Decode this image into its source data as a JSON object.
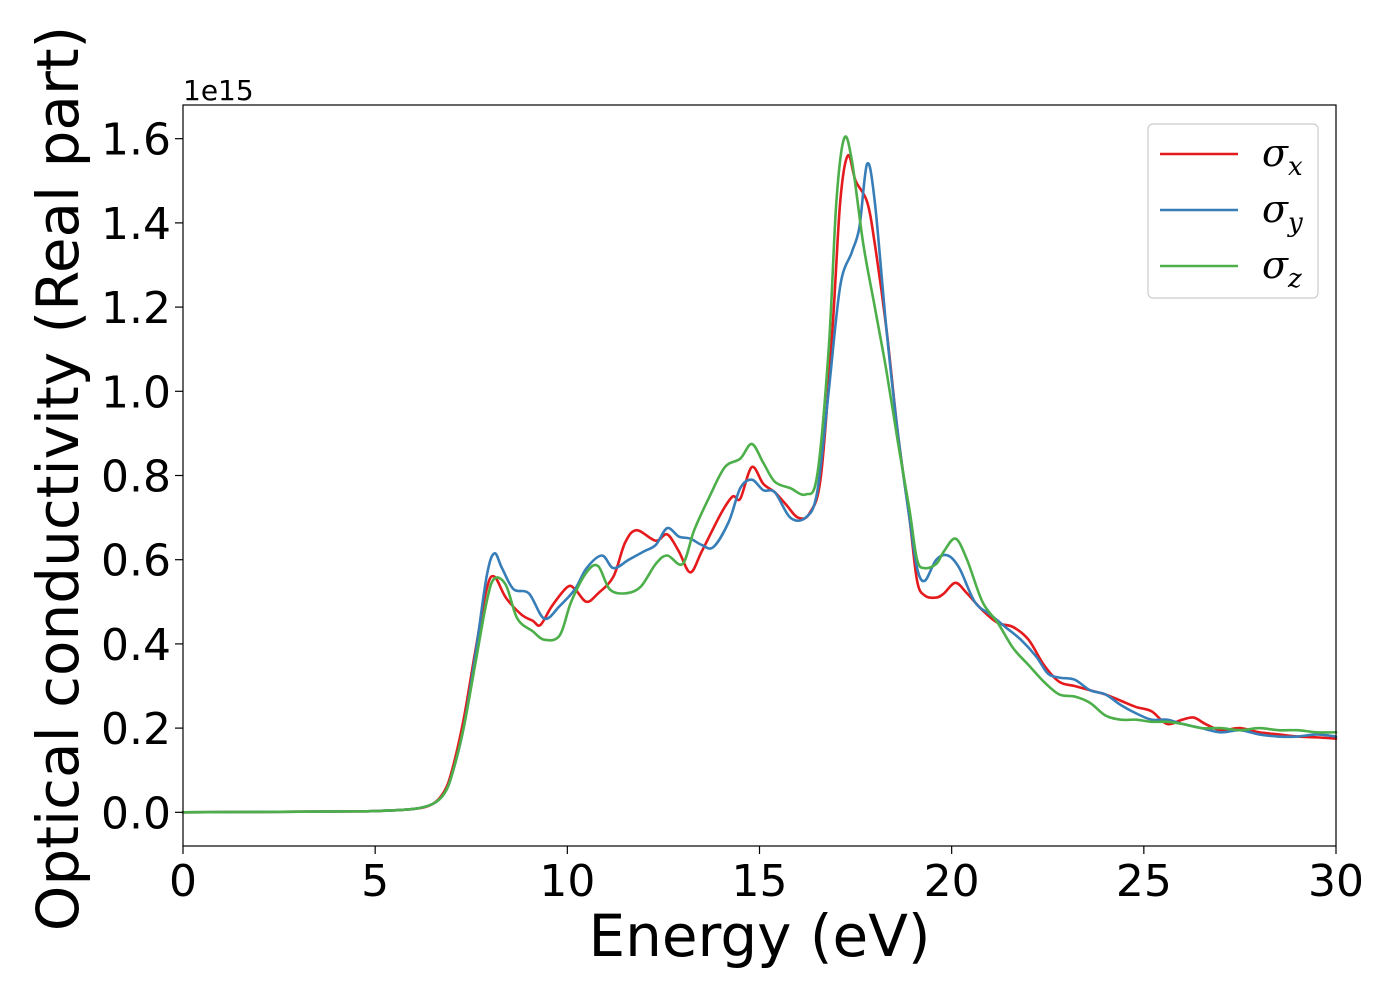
{
  "chart_data": {
    "type": "line",
    "xlabel": "Energy (eV)",
    "ylabel": "Optical conductivity (Real part)",
    "y_offset_text": "1e15",
    "xlim": [
      0,
      30
    ],
    "ylim": [
      -0.08,
      1.68
    ],
    "xticks": [
      0,
      5,
      10,
      15,
      20,
      25,
      30
    ],
    "xtick_labels": [
      "0",
      "5",
      "10",
      "15",
      "20",
      "25",
      "30"
    ],
    "yticks": [
      0.0,
      0.2,
      0.4,
      0.6,
      0.8,
      1.0,
      1.2,
      1.4,
      1.6
    ],
    "ytick_labels": [
      "0.0",
      "0.2",
      "0.4",
      "0.6",
      "0.8",
      "1.0",
      "1.2",
      "1.4",
      "1.6"
    ],
    "grid": false,
    "legend_position": "top-right",
    "series": [
      {
        "name": "σx",
        "symbol": "σ",
        "subscript": "x",
        "color": "#e41a1c",
        "points": [
          [
            0,
            0
          ],
          [
            4,
            0.002
          ],
          [
            5,
            0.003
          ],
          [
            6,
            0.008
          ],
          [
            6.5,
            0.02
          ],
          [
            6.8,
            0.05
          ],
          [
            7,
            0.1
          ],
          [
            7.3,
            0.22
          ],
          [
            7.6,
            0.38
          ],
          [
            7.9,
            0.53
          ],
          [
            8.1,
            0.56
          ],
          [
            8.4,
            0.51
          ],
          [
            8.8,
            0.47
          ],
          [
            9.1,
            0.455
          ],
          [
            9.3,
            0.445
          ],
          [
            9.6,
            0.49
          ],
          [
            10,
            0.535
          ],
          [
            10.2,
            0.53
          ],
          [
            10.5,
            0.5
          ],
          [
            10.8,
            0.52
          ],
          [
            11.2,
            0.56
          ],
          [
            11.5,
            0.64
          ],
          [
            11.8,
            0.67
          ],
          [
            12.3,
            0.645
          ],
          [
            12.6,
            0.66
          ],
          [
            12.9,
            0.62
          ],
          [
            13.2,
            0.57
          ],
          [
            13.5,
            0.62
          ],
          [
            14,
            0.71
          ],
          [
            14.3,
            0.75
          ],
          [
            14.5,
            0.745
          ],
          [
            14.8,
            0.82
          ],
          [
            15.1,
            0.78
          ],
          [
            15.4,
            0.76
          ],
          [
            15.7,
            0.73
          ],
          [
            16,
            0.7
          ],
          [
            16.3,
            0.71
          ],
          [
            16.6,
            0.8
          ],
          [
            16.9,
            1.15
          ],
          [
            17.1,
            1.45
          ],
          [
            17.3,
            1.56
          ],
          [
            17.5,
            1.5
          ],
          [
            17.8,
            1.45
          ],
          [
            18,
            1.35
          ],
          [
            18.3,
            1.15
          ],
          [
            18.6,
            0.9
          ],
          [
            18.9,
            0.7
          ],
          [
            19.1,
            0.55
          ],
          [
            19.3,
            0.515
          ],
          [
            19.6,
            0.51
          ],
          [
            19.8,
            0.52
          ],
          [
            20.1,
            0.545
          ],
          [
            20.4,
            0.52
          ],
          [
            20.8,
            0.48
          ],
          [
            21.2,
            0.45
          ],
          [
            21.6,
            0.44
          ],
          [
            22,
            0.41
          ],
          [
            22.4,
            0.35
          ],
          [
            22.8,
            0.31
          ],
          [
            23.2,
            0.3
          ],
          [
            23.6,
            0.29
          ],
          [
            24,
            0.28
          ],
          [
            24.4,
            0.265
          ],
          [
            24.8,
            0.25
          ],
          [
            25.2,
            0.24
          ],
          [
            25.6,
            0.21
          ],
          [
            26,
            0.22
          ],
          [
            26.3,
            0.225
          ],
          [
            26.6,
            0.21
          ],
          [
            27,
            0.195
          ],
          [
            27.5,
            0.2
          ],
          [
            28,
            0.19
          ],
          [
            28.5,
            0.185
          ],
          [
            29,
            0.18
          ],
          [
            29.5,
            0.178
          ],
          [
            30,
            0.175
          ]
        ]
      },
      {
        "name": "σy",
        "symbol": "σ",
        "subscript": "y",
        "color": "#377eb8",
        "points": [
          [
            0,
            0
          ],
          [
            4,
            0.002
          ],
          [
            5,
            0.003
          ],
          [
            6,
            0.008
          ],
          [
            6.5,
            0.02
          ],
          [
            6.8,
            0.045
          ],
          [
            7,
            0.09
          ],
          [
            7.3,
            0.2
          ],
          [
            7.6,
            0.37
          ],
          [
            7.9,
            0.56
          ],
          [
            8.1,
            0.615
          ],
          [
            8.3,
            0.58
          ],
          [
            8.6,
            0.53
          ],
          [
            9,
            0.52
          ],
          [
            9.4,
            0.46
          ],
          [
            9.8,
            0.49
          ],
          [
            10.2,
            0.53
          ],
          [
            10.5,
            0.58
          ],
          [
            10.9,
            0.61
          ],
          [
            11.2,
            0.58
          ],
          [
            11.6,
            0.6
          ],
          [
            12,
            0.62
          ],
          [
            12.3,
            0.635
          ],
          [
            12.6,
            0.675
          ],
          [
            12.9,
            0.655
          ],
          [
            13.2,
            0.65
          ],
          [
            13.5,
            0.635
          ],
          [
            13.8,
            0.63
          ],
          [
            14.2,
            0.69
          ],
          [
            14.5,
            0.77
          ],
          [
            14.8,
            0.79
          ],
          [
            15.1,
            0.765
          ],
          [
            15.4,
            0.76
          ],
          [
            15.8,
            0.7
          ],
          [
            16.2,
            0.7
          ],
          [
            16.5,
            0.76
          ],
          [
            16.8,
            1.0
          ],
          [
            17.1,
            1.25
          ],
          [
            17.4,
            1.33
          ],
          [
            17.6,
            1.39
          ],
          [
            17.8,
            1.54
          ],
          [
            18,
            1.45
          ],
          [
            18.3,
            1.15
          ],
          [
            18.6,
            0.9
          ],
          [
            18.9,
            0.7
          ],
          [
            19.1,
            0.58
          ],
          [
            19.3,
            0.55
          ],
          [
            19.6,
            0.6
          ],
          [
            19.9,
            0.61
          ],
          [
            20.2,
            0.58
          ],
          [
            20.6,
            0.5
          ],
          [
            21,
            0.47
          ],
          [
            21.4,
            0.44
          ],
          [
            21.8,
            0.41
          ],
          [
            22.2,
            0.37
          ],
          [
            22.5,
            0.33
          ],
          [
            22.8,
            0.32
          ],
          [
            23.2,
            0.315
          ],
          [
            23.6,
            0.29
          ],
          [
            24,
            0.28
          ],
          [
            24.4,
            0.255
          ],
          [
            24.8,
            0.235
          ],
          [
            25.2,
            0.22
          ],
          [
            25.6,
            0.22
          ],
          [
            26,
            0.21
          ],
          [
            26.5,
            0.2
          ],
          [
            27,
            0.19
          ],
          [
            27.5,
            0.195
          ],
          [
            28,
            0.185
          ],
          [
            28.5,
            0.18
          ],
          [
            29,
            0.18
          ],
          [
            29.5,
            0.185
          ],
          [
            30,
            0.18
          ]
        ]
      },
      {
        "name": "σz",
        "symbol": "σ",
        "subscript": "z",
        "color": "#4daf4a",
        "points": [
          [
            0,
            0
          ],
          [
            4,
            0.002
          ],
          [
            5,
            0.003
          ],
          [
            6,
            0.008
          ],
          [
            6.5,
            0.02
          ],
          [
            6.8,
            0.045
          ],
          [
            7,
            0.09
          ],
          [
            7.3,
            0.2
          ],
          [
            7.6,
            0.35
          ],
          [
            7.9,
            0.5
          ],
          [
            8.1,
            0.555
          ],
          [
            8.4,
            0.54
          ],
          [
            8.7,
            0.46
          ],
          [
            9.1,
            0.43
          ],
          [
            9.4,
            0.41
          ],
          [
            9.8,
            0.42
          ],
          [
            10.1,
            0.5
          ],
          [
            10.5,
            0.57
          ],
          [
            10.8,
            0.585
          ],
          [
            11.1,
            0.53
          ],
          [
            11.5,
            0.52
          ],
          [
            11.9,
            0.535
          ],
          [
            12.3,
            0.59
          ],
          [
            12.6,
            0.61
          ],
          [
            13,
            0.59
          ],
          [
            13.3,
            0.67
          ],
          [
            13.7,
            0.75
          ],
          [
            14.1,
            0.82
          ],
          [
            14.5,
            0.84
          ],
          [
            14.8,
            0.875
          ],
          [
            15.1,
            0.83
          ],
          [
            15.4,
            0.785
          ],
          [
            15.8,
            0.77
          ],
          [
            16.2,
            0.755
          ],
          [
            16.5,
            0.8
          ],
          [
            16.8,
            1.1
          ],
          [
            17,
            1.45
          ],
          [
            17.2,
            1.6
          ],
          [
            17.4,
            1.55
          ],
          [
            17.7,
            1.35
          ],
          [
            18,
            1.2
          ],
          [
            18.3,
            1.05
          ],
          [
            18.6,
            0.88
          ],
          [
            18.9,
            0.72
          ],
          [
            19.1,
            0.6
          ],
          [
            19.3,
            0.58
          ],
          [
            19.6,
            0.59
          ],
          [
            19.8,
            0.62
          ],
          [
            20.1,
            0.65
          ],
          [
            20.4,
            0.6
          ],
          [
            20.8,
            0.5
          ],
          [
            21.2,
            0.45
          ],
          [
            21.6,
            0.39
          ],
          [
            22,
            0.35
          ],
          [
            22.4,
            0.31
          ],
          [
            22.8,
            0.28
          ],
          [
            23.2,
            0.275
          ],
          [
            23.6,
            0.26
          ],
          [
            24,
            0.23
          ],
          [
            24.4,
            0.22
          ],
          [
            24.8,
            0.22
          ],
          [
            25.2,
            0.215
          ],
          [
            25.6,
            0.215
          ],
          [
            26,
            0.21
          ],
          [
            26.5,
            0.2
          ],
          [
            27,
            0.2
          ],
          [
            27.5,
            0.195
          ],
          [
            28,
            0.2
          ],
          [
            28.5,
            0.195
          ],
          [
            29,
            0.195
          ],
          [
            29.5,
            0.19
          ],
          [
            30,
            0.19
          ]
        ]
      }
    ]
  }
}
